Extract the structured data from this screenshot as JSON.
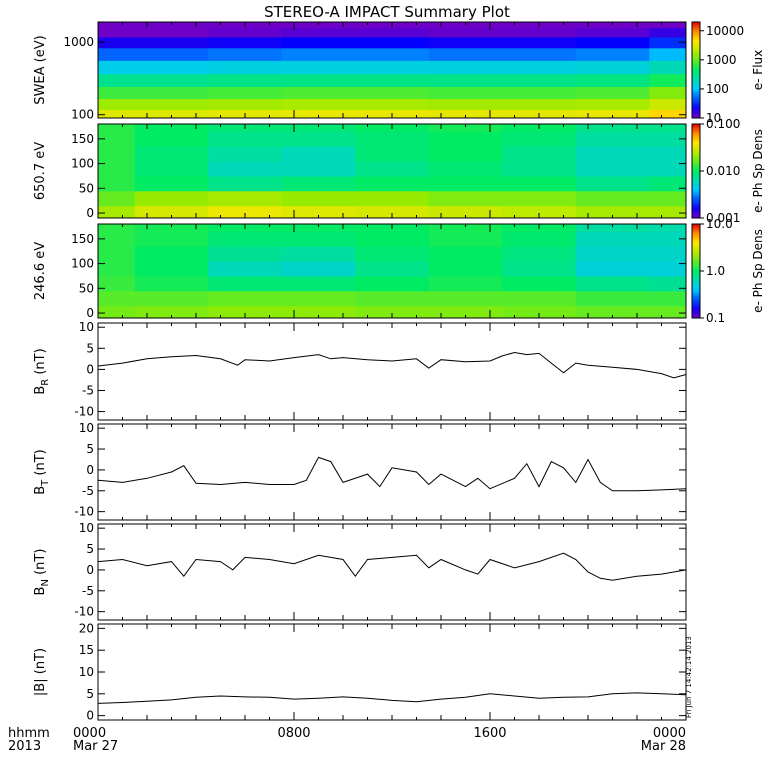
{
  "title": "STEREO-A IMPACT Summary Plot",
  "footer": {
    "time_label": "hhmm",
    "year_label": "2013",
    "stamp": "Fri Jun  7 14:42:14 2013"
  },
  "colors": {
    "line": "#000000",
    "frame": "#000000"
  },
  "chart_data": [
    {
      "id": "swea",
      "type": "heatmap",
      "ylabel": "SWEA (eV)",
      "y_scale": "log",
      "ylim": [
        90,
        1900
      ],
      "yticks": [
        "100",
        "1000"
      ],
      "colorbar": {
        "label": "e- Flux",
        "scale": "log",
        "range": [
          10,
          20000
        ],
        "ticks": [
          "10",
          "100",
          "1000",
          "10000"
        ]
      },
      "grid_y": [
        100,
        140,
        200,
        300,
        450,
        700,
        1000,
        1400,
        1800
      ],
      "grid_x": [
        0,
        3,
        6,
        9,
        12,
        15,
        18,
        21,
        24
      ],
      "values": [
        [
          3000,
          3000,
          3200,
          3400,
          3400,
          3300,
          3200,
          3400,
          5000
        ],
        [
          1500,
          1500,
          1600,
          1700,
          1700,
          1600,
          1600,
          1700,
          2500
        ],
        [
          700,
          700,
          750,
          800,
          800,
          750,
          750,
          800,
          1200
        ],
        [
          300,
          300,
          320,
          330,
          330,
          320,
          320,
          340,
          500
        ],
        [
          120,
          120,
          130,
          130,
          130,
          130,
          130,
          140,
          200
        ],
        [
          50,
          50,
          55,
          60,
          60,
          55,
          55,
          60,
          90
        ],
        [
          20,
          20,
          22,
          24,
          24,
          22,
          22,
          24,
          34
        ],
        [
          10,
          10,
          11,
          12,
          12,
          11,
          11,
          12,
          16
        ],
        [
          7,
          7,
          8,
          8,
          8,
          8,
          8,
          8,
          10
        ]
      ]
    },
    {
      "id": "pad_high",
      "type": "heatmap",
      "ylabel": "650.7 eV",
      "ylim": [
        -10,
        180
      ],
      "yticks": [
        0,
        50,
        100,
        150
      ],
      "colorbar": {
        "label": "e- Ph Sp Dens",
        "scale": "log",
        "range": [
          0.001,
          0.1
        ],
        "ticks": [
          "0.001",
          "0.010",
          "0.100"
        ]
      },
      "grid_y": [
        0,
        30,
        60,
        90,
        120,
        150,
        180
      ],
      "grid_x": [
        0,
        3,
        6,
        9,
        12,
        15,
        18,
        21,
        24
      ],
      "values": [
        [
          0.022,
          0.03,
          0.035,
          0.032,
          0.03,
          0.028,
          0.026,
          0.022,
          0.022
        ],
        [
          0.016,
          0.02,
          0.022,
          0.02,
          0.02,
          0.018,
          0.018,
          0.016,
          0.016
        ],
        [
          0.012,
          0.01,
          0.008,
          0.009,
          0.01,
          0.01,
          0.01,
          0.008,
          0.009
        ],
        [
          0.012,
          0.009,
          0.006,
          0.006,
          0.008,
          0.009,
          0.008,
          0.006,
          0.006
        ],
        [
          0.012,
          0.009,
          0.007,
          0.006,
          0.009,
          0.01,
          0.008,
          0.006,
          0.006
        ],
        [
          0.012,
          0.01,
          0.008,
          0.008,
          0.009,
          0.01,
          0.009,
          0.007,
          0.007
        ],
        [
          0.012,
          0.01,
          0.009,
          0.009,
          0.01,
          0.011,
          0.01,
          0.008,
          0.008
        ]
      ]
    },
    {
      "id": "pad_low",
      "type": "heatmap",
      "ylabel": "246.6 eV",
      "ylim": [
        -10,
        180
      ],
      "yticks": [
        0,
        50,
        100,
        150
      ],
      "colorbar": {
        "label": "e- Ph Sp Dens",
        "scale": "log",
        "range": [
          0.1,
          10
        ],
        "ticks": [
          "0.1",
          "1.0",
          "10.0"
        ]
      },
      "grid_y": [
        0,
        30,
        60,
        90,
        120,
        150,
        180
      ],
      "grid_x": [
        0,
        3,
        6,
        9,
        12,
        15,
        18,
        21,
        24
      ],
      "values": [
        [
          1.7,
          1.8,
          1.9,
          1.9,
          1.8,
          1.8,
          1.7,
          1.6,
          1.6
        ],
        [
          1.5,
          1.5,
          1.6,
          1.6,
          1.5,
          1.5,
          1.5,
          1.3,
          1.3
        ],
        [
          1.3,
          1.1,
          0.9,
          0.9,
          1.0,
          1.1,
          1.0,
          0.8,
          0.75
        ],
        [
          1.2,
          1.0,
          0.6,
          0.55,
          0.8,
          1.0,
          0.8,
          0.5,
          0.5
        ],
        [
          1.2,
          1.0,
          0.75,
          0.7,
          0.9,
          1.0,
          0.85,
          0.55,
          0.55
        ],
        [
          1.2,
          1.1,
          0.9,
          0.9,
          1.0,
          1.1,
          0.95,
          0.6,
          0.6
        ],
        [
          1.2,
          1.1,
          1.0,
          1.0,
          1.0,
          1.1,
          1.0,
          0.7,
          0.65
        ]
      ]
    },
    {
      "id": "br",
      "type": "line",
      "ylabel_main": "B",
      "ylabel_sub": "R",
      "ylabel_unit": " (nT)",
      "ylim": [
        -12,
        11
      ],
      "yticks": [
        -10,
        -5,
        0,
        5,
        10
      ],
      "x": [
        0,
        1,
        2,
        3,
        4,
        5,
        5.7,
        6,
        7,
        8,
        9,
        9.5,
        10,
        11,
        12,
        13,
        13.5,
        14,
        15,
        16,
        16.5,
        17,
        17.5,
        18,
        19,
        19.5,
        20,
        21,
        22,
        23,
        23.5,
        24
      ],
      "values": [
        0.8,
        1.5,
        2.5,
        3.0,
        3.3,
        2.5,
        1.0,
        2.3,
        2.0,
        2.8,
        3.5,
        2.5,
        2.8,
        2.3,
        2.0,
        2.5,
        0.3,
        2.3,
        1.8,
        2.0,
        3.2,
        4.0,
        3.5,
        3.8,
        -0.8,
        1.5,
        1.0,
        0.5,
        0.0,
        -1.0,
        -2.0,
        -1.2
      ]
    },
    {
      "id": "bt",
      "type": "line",
      "ylabel_main": "B",
      "ylabel_sub": "T",
      "ylabel_unit": " (nT)",
      "ylim": [
        -12,
        11
      ],
      "yticks": [
        -10,
        -5,
        0,
        5,
        10
      ],
      "x": [
        0,
        1,
        2,
        3,
        3.5,
        4,
        5,
        6,
        7,
        8,
        8.5,
        9,
        9.5,
        10,
        11,
        11.5,
        12,
        13,
        13.5,
        14,
        15,
        15.5,
        16,
        17,
        17.5,
        18,
        18.5,
        19,
        19.5,
        20,
        20.5,
        21,
        22,
        23,
        24
      ],
      "values": [
        -2.5,
        -3.0,
        -2.0,
        -0.5,
        1.0,
        -3.2,
        -3.5,
        -3.0,
        -3.5,
        -3.5,
        -2.5,
        3.0,
        2.0,
        -3.0,
        -1.0,
        -4.0,
        0.5,
        -0.5,
        -3.5,
        -1.0,
        -4.0,
        -2.0,
        -4.5,
        -2.0,
        1.5,
        -4.0,
        2.0,
        0.5,
        -3.0,
        2.5,
        -3.0,
        -5.0,
        -5.0,
        -4.8,
        -4.5
      ]
    },
    {
      "id": "bn",
      "type": "line",
      "ylabel_main": "B",
      "ylabel_sub": "N",
      "ylabel_unit": " (nT)",
      "ylim": [
        -12,
        11
      ],
      "yticks": [
        -10,
        -5,
        0,
        5,
        10
      ],
      "x": [
        0,
        1,
        2,
        3,
        3.5,
        4,
        5,
        5.5,
        6,
        7,
        8,
        9,
        10,
        10.5,
        11,
        12,
        13,
        13.5,
        14,
        15,
        15.5,
        16,
        17,
        18,
        19,
        19.5,
        20,
        20.5,
        21,
        22,
        23,
        24
      ],
      "values": [
        2.0,
        2.5,
        1.0,
        2.0,
        -1.5,
        2.5,
        2.0,
        0.0,
        3.0,
        2.5,
        1.5,
        3.5,
        2.5,
        -1.5,
        2.5,
        3.0,
        3.5,
        0.5,
        2.5,
        0.0,
        -1.0,
        2.5,
        0.5,
        2.0,
        4.0,
        2.5,
        -0.5,
        -2.0,
        -2.5,
        -1.5,
        -1.0,
        0.0
      ]
    },
    {
      "id": "bmag",
      "type": "line",
      "ylabel_main": "|B|",
      "ylabel_sub": "",
      "ylabel_unit": " (nT)",
      "ylim": [
        -1,
        21
      ],
      "yticks": [
        0,
        5,
        10,
        15,
        20
      ],
      "x": [
        0,
        1,
        2,
        3,
        4,
        5,
        6,
        7,
        8,
        9,
        10,
        11,
        12,
        13,
        14,
        15,
        16,
        17,
        18,
        19,
        20,
        21,
        22,
        23,
        24
      ],
      "values": [
        2.8,
        3.0,
        3.3,
        3.6,
        4.2,
        4.5,
        4.3,
        4.2,
        3.8,
        4.0,
        4.3,
        4.0,
        3.5,
        3.2,
        3.8,
        4.2,
        5.0,
        4.5,
        4.0,
        4.2,
        4.3,
        5.0,
        5.2,
        5.0,
        4.8
      ]
    }
  ],
  "x_axis": {
    "ticks": [
      {
        "label": "0000",
        "date": "Mar 27"
      },
      {
        "label": "0800",
        "date": ""
      },
      {
        "label": "1600",
        "date": ""
      },
      {
        "label": "0000",
        "date": "Mar 28"
      }
    ]
  }
}
